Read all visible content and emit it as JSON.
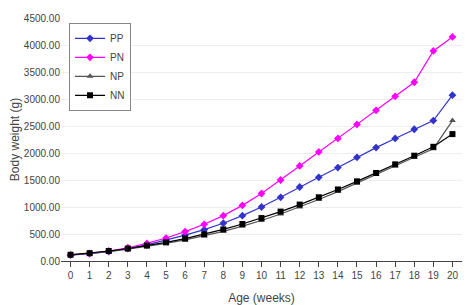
{
  "chart_data": {
    "type": "line",
    "xlabel": "Age (weeks)",
    "ylabel": "Body weight (g)",
    "x": [
      0,
      1,
      2,
      3,
      4,
      5,
      6,
      7,
      8,
      9,
      10,
      11,
      12,
      13,
      14,
      15,
      16,
      17,
      18,
      19,
      20
    ],
    "series": [
      {
        "name": "PP",
        "color": "#3333CC",
        "marker": "diamond",
        "values": [
          110,
          135,
          175,
          230,
          300,
          385,
          480,
          580,
          700,
          840,
          1000,
          1180,
          1370,
          1550,
          1730,
          1920,
          2100,
          2270,
          2440,
          2600,
          3070
        ]
      },
      {
        "name": "PN",
        "color": "#FF00FF",
        "marker": "diamond",
        "values": [
          112,
          140,
          185,
          245,
          325,
          425,
          545,
          680,
          840,
          1030,
          1250,
          1500,
          1760,
          2020,
          2270,
          2530,
          2790,
          3050,
          3310,
          3890,
          4150
        ]
      },
      {
        "name": "NP",
        "color": "#555555",
        "marker": "triangle-up",
        "values": [
          115,
          140,
          175,
          220,
          270,
          325,
          390,
          465,
          550,
          645,
          750,
          870,
          1000,
          1140,
          1285,
          1440,
          1600,
          1760,
          1920,
          2080,
          2600
        ]
      },
      {
        "name": "NN",
        "color": "#000000",
        "marker": "square",
        "values": [
          115,
          145,
          185,
          230,
          285,
          345,
          415,
          495,
          585,
          685,
          795,
          915,
          1045,
          1180,
          1325,
          1475,
          1630,
          1790,
          1950,
          2115,
          2350
        ]
      }
    ],
    "xlim": [
      -0.5,
      20.5
    ],
    "ylim": [
      0,
      4500
    ],
    "xticks": [
      0,
      1,
      2,
      3,
      4,
      5,
      6,
      7,
      8,
      9,
      10,
      11,
      12,
      13,
      14,
      15,
      16,
      17,
      18,
      19,
      20
    ],
    "yticks": [
      {
        "value": 0,
        "label": "0.00"
      },
      {
        "value": 500,
        "label": "500.00"
      },
      {
        "value": 1000,
        "label": "1000.00"
      },
      {
        "value": 1500,
        "label": "1500.00"
      },
      {
        "value": 2000,
        "label": "2000.00"
      },
      {
        "value": 2500,
        "label": "2500.00"
      },
      {
        "value": 3000,
        "label": "3000.00"
      },
      {
        "value": 3500,
        "label": "3500.00"
      },
      {
        "value": 4000,
        "label": "4000.00"
      },
      {
        "value": 4500,
        "label": "4500.00"
      }
    ],
    "grid": true,
    "legend": "upper left"
  }
}
